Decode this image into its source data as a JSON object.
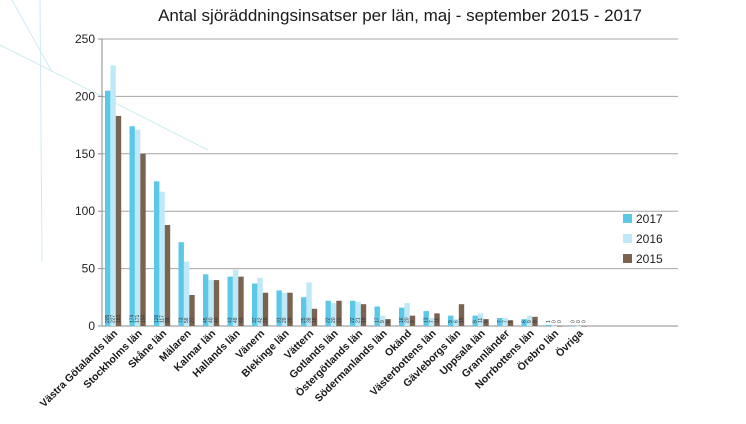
{
  "chart_data": {
    "type": "bar",
    "title": "Antal sjöräddningsinsatser per län, maj - september 2015 - 2017",
    "xlabel": "",
    "ylabel": "",
    "ylim": [
      0,
      250
    ],
    "yticks": [
      0,
      50,
      100,
      150,
      200,
      250
    ],
    "grid": true,
    "legend_position": "right",
    "categories": [
      "Västra Götalands län",
      "Stockholms län",
      "Skåne län",
      "Mälaren",
      "Kalmar län",
      "Hallands län",
      "Vänern",
      "Blekinge län",
      "Vättern",
      "Gotlands län",
      "Östergötlands län",
      "Södermanlands län",
      "Okänd",
      "Västerbottens län",
      "Gävleborgs län",
      "Uppsala län",
      "Grannländer",
      "Norrbottens län",
      "Örebro län",
      "Övriga"
    ],
    "series": [
      {
        "name": "2017",
        "color": "#5bc8e8",
        "values": [
          205,
          174,
          126,
          73,
          45,
          43,
          37,
          31,
          25,
          22,
          22,
          17,
          16,
          13,
          9,
          9,
          7,
          6,
          1,
          0
        ]
      },
      {
        "name": "2016",
        "color": "#bfe9f8",
        "values": [
          227,
          171,
          117,
          56,
          40,
          49,
          42,
          29,
          38,
          20,
          21,
          9,
          20,
          7,
          6,
          11,
          7,
          9,
          0,
          0
        ]
      },
      {
        "name": "2015",
        "color": "#7a6350",
        "values": [
          183,
          150,
          88,
          27,
          40,
          43,
          29,
          29,
          15,
          22,
          19,
          6,
          9,
          11,
          19,
          6,
          5,
          8,
          0,
          0
        ]
      }
    ],
    "bar_labels": [
      [
        "205",
        "227",
        "183"
      ],
      [
        "174",
        "171",
        "150"
      ],
      [
        "126",
        "117",
        "88"
      ],
      [
        "73",
        "56",
        "27"
      ],
      [
        "45",
        "40",
        "40"
      ],
      [
        "43",
        "49",
        "43"
      ],
      [
        "37",
        "42",
        "29"
      ],
      [
        "31",
        "29",
        "29"
      ],
      [
        "25",
        "38",
        "15"
      ],
      [
        "22",
        "20",
        "22"
      ],
      [
        "22",
        "21",
        "19"
      ],
      [
        "17",
        "9",
        "6"
      ],
      [
        "16",
        "20",
        "9"
      ],
      [
        "13",
        "7",
        "11"
      ],
      [
        "9",
        "6",
        "19"
      ],
      [
        "9",
        "11",
        "6"
      ],
      [
        "7",
        "7",
        "5"
      ],
      [
        "6",
        "9",
        "8"
      ],
      [
        "1",
        "0",
        "0"
      ],
      [
        "0",
        "0",
        "0"
      ]
    ]
  }
}
